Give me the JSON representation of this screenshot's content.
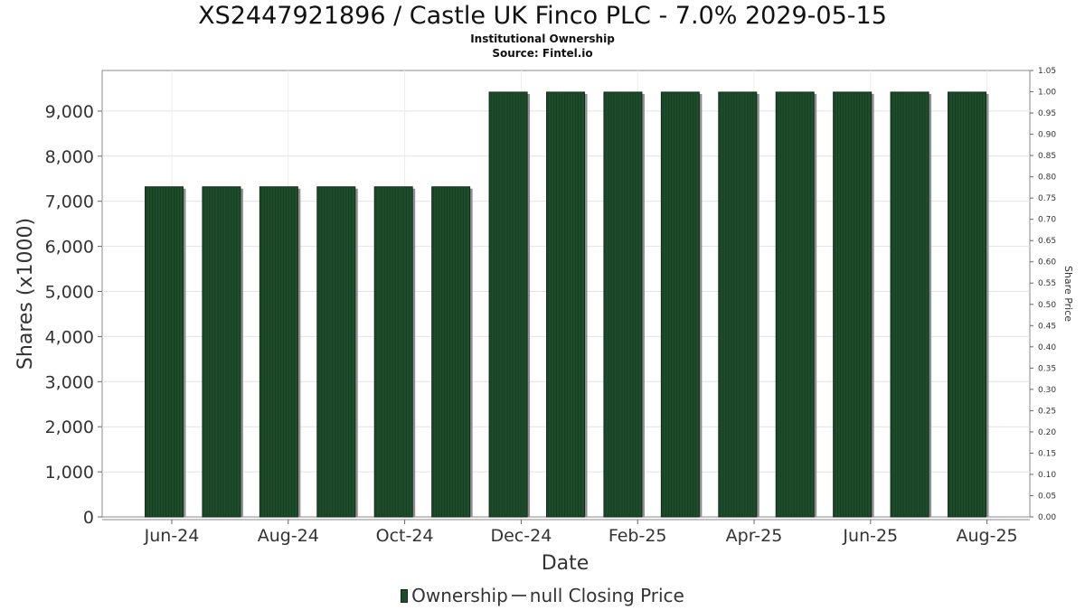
{
  "chart_data": {
    "type": "bar",
    "title": "XS2447921896 / Castle UK Finco PLC - 7.0% 2029-05-15",
    "subtitle": "Institutional Ownership",
    "source": "Source: Fintel.io",
    "xlabel": "Date",
    "ylabel": "Shares (x1000)",
    "y2label": "Share Price",
    "ylim": [
      0,
      9900
    ],
    "y2lim": [
      0,
      1.05
    ],
    "y_ticks": [
      "0",
      "1,000",
      "2,000",
      "3,000",
      "4,000",
      "5,000",
      "6,000",
      "7,000",
      "8,000",
      "9,000"
    ],
    "y2_ticks": [
      "0.00",
      "0.05",
      "0.10",
      "0.15",
      "0.20",
      "0.25",
      "0.30",
      "0.35",
      "0.40",
      "0.45",
      "0.50",
      "0.55",
      "0.60",
      "0.65",
      "0.70",
      "0.75",
      "0.80",
      "0.85",
      "0.90",
      "0.95",
      "1.00",
      "1.05"
    ],
    "x_ticks": [
      "Jun-24",
      "Aug-24",
      "Oct-24",
      "Dec-24",
      "Feb-25",
      "Apr-25",
      "Jun-25",
      "Aug-25"
    ],
    "grid": true,
    "legend_position": "bottom",
    "series": [
      {
        "name": "Ownership",
        "color": "#1e4d2b",
        "values": [
          7320,
          7320,
          7320,
          7320,
          7320,
          7320,
          9420,
          9420,
          9420,
          9420,
          9420,
          9420,
          9420,
          9420,
          9420
        ]
      }
    ],
    "legend": {
      "ownership_label": "Ownership",
      "price_label": "null Closing Price"
    }
  }
}
